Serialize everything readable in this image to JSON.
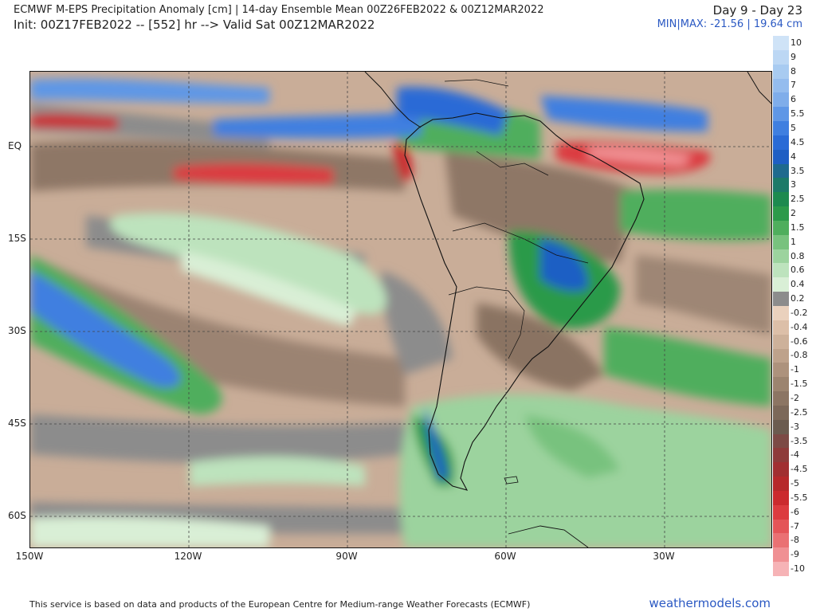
{
  "header": {
    "title_line1": "ECMWF M-EPS Precipitation Anomaly [cm] | 14-day Ensemble Mean 00Z26FEB2022 & 00Z12MAR2022",
    "title_line2": "Init: 00Z17FEB2022 -- [552] hr --> Valid Sat 00Z12MAR2022",
    "day_range": "Day 9 - Day 23",
    "minmax": "MIN|MAX: -21.56 | 19.64 cm"
  },
  "map": {
    "lat_labels": [
      "EQ",
      "15S",
      "30S",
      "45S",
      "60S"
    ],
    "lon_labels": [
      "150W",
      "120W",
      "90W",
      "60W",
      "30W"
    ]
  },
  "colorbar": {
    "labels": [
      "10",
      "9",
      "8",
      "7",
      "6",
      "5.5",
      "5",
      "4.5",
      "4",
      "3.5",
      "3",
      "2.5",
      "2",
      "1.5",
      "1",
      "0.8",
      "0.6",
      "0.4",
      "0.2",
      "-0.2",
      "-0.4",
      "-0.6",
      "-0.8",
      "-1",
      "-1.5",
      "-2",
      "-2.5",
      "-3",
      "-3.5",
      "-4",
      "-4.5",
      "-5",
      "-5.5",
      "-6",
      "-7",
      "-8",
      "-9",
      "-10"
    ],
    "colors": [
      "#cfe3f7",
      "#bcd7f4",
      "#a8cbf1",
      "#94bcee",
      "#7fadea",
      "#5f97e6",
      "#3f7fe0",
      "#2a6bd6",
      "#1f5fc4",
      "#1f6a8e",
      "#1c7a68",
      "#1d8a4f",
      "#2c9a4a",
      "#4fae5d",
      "#78c27e",
      "#9cd39e",
      "#bde3bd",
      "#d9efd6",
      "#8c8c8c",
      "#ead1bd",
      "#dcbfa8",
      "#cdb19a",
      "#bea28b",
      "#ad927c",
      "#9c846f",
      "#8c7563",
      "#7c6859",
      "#6b5b4f",
      "#7c4a45",
      "#8e3b3a",
      "#a12f31",
      "#b6292b",
      "#cb2a2e",
      "#dc3b3f",
      "#e45558",
      "#ea7173",
      "#f09093",
      "#f6b3b6"
    ]
  },
  "footer": {
    "credit": "This service is based on data and products of the European Centre for Medium-range Weather Forecasts (ECMWF)",
    "site": "weathermodels.com"
  }
}
